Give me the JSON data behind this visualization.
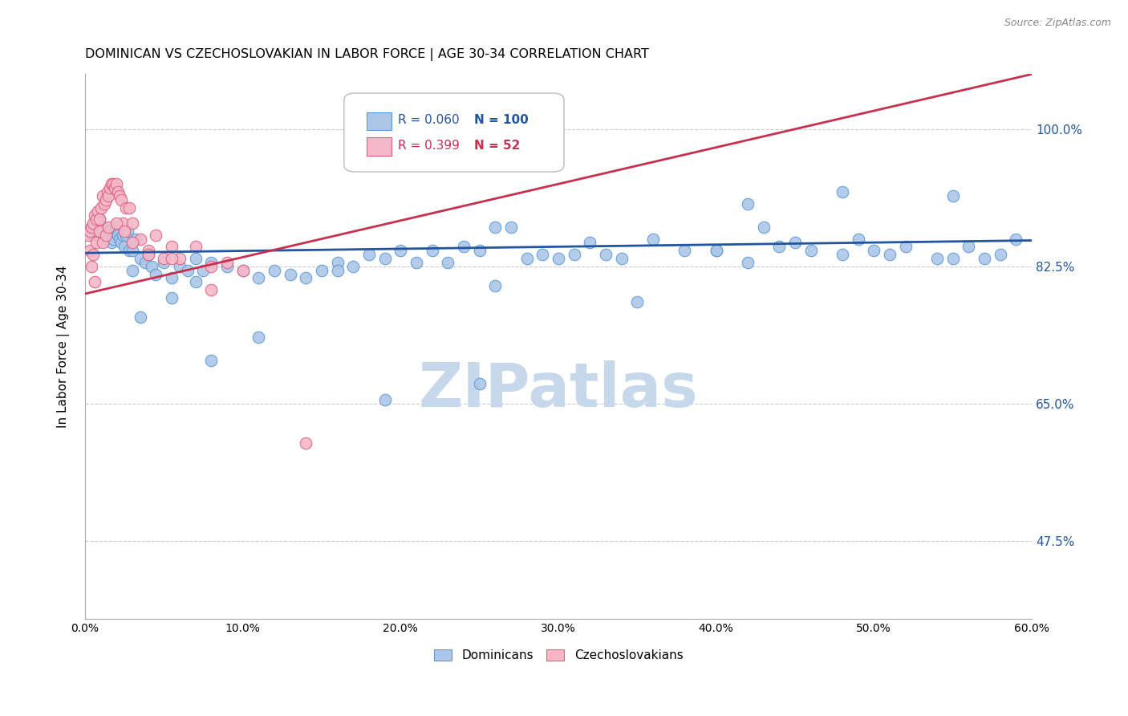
{
  "title": "DOMINICAN VS CZECHOSLOVAKIAN IN LABOR FORCE | AGE 30-34 CORRELATION CHART",
  "source": "Source: ZipAtlas.com",
  "ylabel": "In Labor Force | Age 30-34",
  "xlim": [
    0.0,
    60.0
  ],
  "ylim": [
    37.5,
    107.0
  ],
  "ytick_labels": [
    "47.5%",
    "65.0%",
    "82.5%",
    "100.0%"
  ],
  "ytick_values": [
    47.5,
    65.0,
    82.5,
    100.0
  ],
  "xtick_values": [
    0.0,
    10.0,
    20.0,
    30.0,
    40.0,
    50.0,
    60.0
  ],
  "xtick_labels": [
    "0.0%",
    "10.0%",
    "20.0%",
    "30.0%",
    "40.0%",
    "50.0%",
    "60.0%"
  ],
  "blue_R": 0.06,
  "blue_N": 100,
  "pink_R": 0.399,
  "pink_N": 52,
  "blue_color": "#adc6e8",
  "blue_edge": "#5b9bd5",
  "pink_color": "#f4b8c8",
  "pink_edge": "#e06080",
  "blue_line_color": "#2255a0",
  "pink_line_color": "#c83050",
  "legend_blue_label": "Dominicans",
  "legend_pink_label": "Czechoslovakians",
  "watermark": "ZIPatlas",
  "watermark_color": "#c8d8ec",
  "blue_line_x": [
    0.0,
    60.0
  ],
  "blue_line_y": [
    84.2,
    85.8
  ],
  "pink_line_x": [
    0.0,
    60.0
  ],
  "pink_line_y": [
    79.0,
    107.0
  ],
  "blue_x": [
    0.3,
    0.4,
    0.5,
    0.6,
    0.7,
    0.8,
    0.9,
    1.0,
    1.1,
    1.2,
    1.3,
    1.4,
    1.5,
    1.6,
    1.7,
    1.8,
    1.9,
    2.0,
    2.1,
    2.2,
    2.3,
    2.4,
    2.5,
    2.6,
    2.7,
    2.8,
    3.0,
    3.2,
    3.5,
    3.8,
    4.0,
    4.2,
    4.5,
    5.0,
    5.5,
    6.0,
    6.5,
    7.0,
    7.5,
    8.0,
    9.0,
    10.0,
    11.0,
    12.0,
    13.0,
    14.0,
    15.0,
    16.0,
    17.0,
    18.0,
    19.0,
    20.0,
    21.0,
    22.0,
    23.0,
    24.0,
    25.0,
    26.0,
    27.0,
    28.0,
    29.0,
    30.0,
    31.0,
    32.0,
    33.0,
    34.0,
    36.0,
    38.0,
    40.0,
    42.0,
    43.0,
    44.0,
    45.0,
    46.0,
    48.0,
    49.0,
    50.0,
    51.0,
    52.0,
    54.0,
    55.0,
    56.0,
    57.0,
    58.0,
    59.0,
    3.5,
    5.5,
    8.0,
    11.0,
    19.0,
    25.0,
    35.0,
    42.0,
    48.0,
    55.0,
    3.0,
    7.0,
    16.0,
    26.0,
    40.0
  ],
  "blue_y": [
    87.0,
    87.5,
    86.5,
    88.0,
    87.0,
    86.5,
    88.5,
    87.0,
    87.5,
    86.0,
    86.5,
    87.0,
    86.5,
    87.0,
    85.5,
    86.0,
    87.0,
    87.5,
    86.5,
    86.0,
    85.5,
    86.5,
    85.0,
    86.5,
    87.0,
    84.5,
    84.5,
    86.0,
    83.5,
    83.0,
    84.0,
    82.5,
    81.5,
    83.0,
    81.0,
    82.5,
    82.0,
    83.5,
    82.0,
    83.0,
    82.5,
    82.0,
    81.0,
    82.0,
    81.5,
    81.0,
    82.0,
    83.0,
    82.5,
    84.0,
    83.5,
    84.5,
    83.0,
    84.5,
    83.0,
    85.0,
    84.5,
    87.5,
    87.5,
    83.5,
    84.0,
    83.5,
    84.0,
    85.5,
    84.0,
    83.5,
    86.0,
    84.5,
    84.5,
    83.0,
    87.5,
    85.0,
    85.5,
    84.5,
    84.0,
    86.0,
    84.5,
    84.0,
    85.0,
    83.5,
    83.5,
    85.0,
    83.5,
    84.0,
    86.0,
    76.0,
    78.5,
    70.5,
    73.5,
    65.5,
    67.5,
    78.0,
    90.5,
    92.0,
    91.5,
    82.0,
    80.5,
    82.0,
    80.0,
    84.5
  ],
  "pink_x": [
    0.2,
    0.3,
    0.4,
    0.5,
    0.6,
    0.7,
    0.8,
    0.9,
    1.0,
    1.1,
    1.2,
    1.3,
    1.4,
    1.5,
    1.6,
    1.7,
    1.8,
    1.9,
    2.0,
    2.1,
    2.2,
    2.3,
    2.4,
    2.6,
    2.8,
    3.0,
    3.5,
    4.0,
    4.5,
    5.0,
    5.5,
    6.0,
    7.0,
    8.0,
    9.0,
    10.0,
    0.3,
    0.5,
    0.7,
    0.9,
    1.1,
    1.3,
    1.5,
    2.0,
    2.5,
    3.0,
    4.0,
    5.5,
    0.4,
    0.6,
    8.0,
    14.0
  ],
  "pink_y": [
    86.5,
    87.0,
    87.5,
    88.0,
    89.0,
    88.5,
    89.5,
    88.5,
    90.0,
    91.5,
    90.5,
    91.0,
    92.0,
    91.5,
    92.5,
    93.0,
    93.0,
    92.5,
    93.0,
    92.0,
    91.5,
    91.0,
    88.0,
    90.0,
    90.0,
    88.0,
    86.0,
    84.5,
    86.5,
    83.5,
    85.0,
    83.5,
    85.0,
    82.5,
    83.0,
    82.0,
    84.5,
    84.0,
    85.5,
    87.0,
    85.5,
    86.5,
    87.5,
    88.0,
    87.0,
    85.5,
    84.0,
    83.5,
    82.5,
    80.5,
    79.5,
    60.0
  ]
}
